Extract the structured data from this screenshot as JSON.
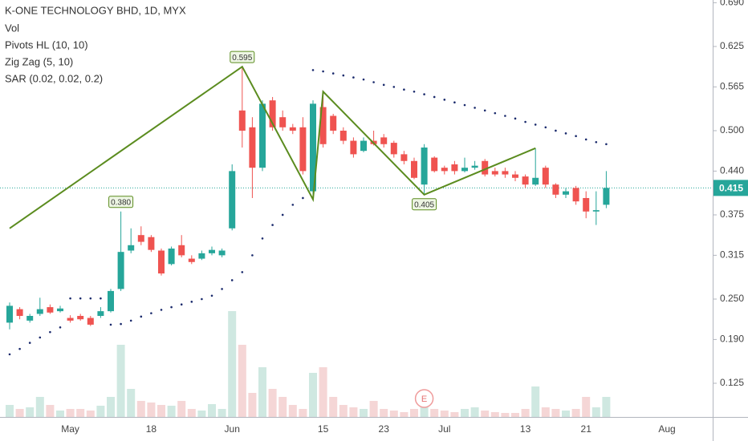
{
  "chart_data": {
    "type": "candlestick",
    "title": "K-ONE TECHNOLOGY BHD, 1D, MYX",
    "legend": [
      "Vol",
      "Pivots HL (10, 10)",
      "Zig Zag (5, 10)",
      "SAR (0.02, 0.02, 0.2)"
    ],
    "categories": [
      null,
      null,
      null,
      null,
      null,
      null,
      "May",
      null,
      null,
      null,
      null,
      null,
      null,
      null,
      "18",
      null,
      null,
      null,
      null,
      null,
      null,
      null,
      "Jun",
      null,
      null,
      null,
      null,
      null,
      null,
      null,
      null,
      "15",
      null,
      null,
      null,
      null,
      null,
      "23",
      null,
      null,
      null,
      null,
      null,
      "Jul",
      null,
      null,
      null,
      null,
      null,
      null,
      null,
      "13",
      null,
      null,
      null,
      null,
      null,
      "21",
      null,
      null,
      null,
      null,
      null,
      null,
      null,
      "Aug"
    ],
    "open": [
      0.215,
      0.235,
      0.218,
      0.228,
      0.238,
      0.232,
      0.222,
      0.225,
      0.222,
      0.225,
      0.232,
      0.265,
      0.322,
      0.345,
      0.342,
      0.322,
      0.302,
      0.33,
      0.31,
      0.31,
      0.318,
      0.315,
      0.355,
      0.53,
      0.505,
      0.445,
      0.545,
      0.52,
      0.505,
      0.505,
      0.41,
      0.535,
      0.522,
      0.5,
      0.485,
      0.47,
      0.485,
      0.49,
      0.482,
      0.465,
      0.455,
      0.42,
      0.46,
      0.445,
      0.45,
      0.44,
      0.445,
      0.455,
      0.44,
      0.44,
      0.435,
      0.432,
      0.42,
      0.445,
      0.42,
      0.405,
      0.415,
      0.4,
      0.38,
      0.39,
      null,
      null,
      null,
      null,
      null,
      null
    ],
    "high": [
      0.245,
      0.238,
      0.228,
      0.252,
      0.242,
      0.24,
      0.226,
      0.228,
      0.225,
      0.238,
      0.265,
      0.38,
      0.355,
      0.358,
      0.345,
      0.325,
      0.328,
      0.345,
      0.315,
      0.322,
      0.328,
      0.325,
      0.45,
      0.595,
      0.52,
      0.545,
      0.55,
      0.53,
      0.51,
      0.52,
      0.545,
      0.558,
      0.525,
      0.505,
      0.49,
      0.49,
      0.5,
      0.495,
      0.485,
      0.47,
      0.46,
      0.48,
      0.462,
      0.448,
      0.455,
      0.46,
      0.455,
      0.458,
      0.445,
      0.445,
      0.44,
      0.435,
      0.474,
      0.448,
      0.422,
      0.415,
      0.418,
      0.41,
      0.41,
      0.44,
      null,
      null,
      null,
      null,
      null,
      null
    ],
    "low": [
      0.205,
      0.22,
      0.215,
      0.225,
      0.228,
      0.23,
      0.215,
      0.218,
      0.21,
      0.222,
      0.23,
      0.262,
      0.318,
      0.33,
      0.32,
      0.285,
      0.3,
      0.312,
      0.302,
      0.308,
      0.315,
      0.312,
      0.352,
      0.475,
      0.4,
      0.44,
      0.5,
      0.5,
      0.495,
      0.435,
      0.398,
      0.475,
      0.495,
      0.48,
      0.46,
      0.468,
      0.478,
      0.475,
      0.46,
      0.45,
      0.428,
      0.405,
      0.438,
      0.435,
      0.435,
      0.438,
      0.442,
      0.432,
      0.432,
      0.43,
      0.425,
      0.415,
      0.418,
      0.415,
      0.4,
      0.4,
      0.39,
      0.37,
      0.36,
      0.385,
      null,
      null,
      null,
      null,
      null,
      null
    ],
    "close": [
      0.24,
      0.225,
      0.225,
      0.235,
      0.23,
      0.236,
      0.218,
      0.22,
      0.212,
      0.232,
      0.262,
      0.32,
      0.33,
      0.335,
      0.323,
      0.288,
      0.325,
      0.315,
      0.305,
      0.318,
      0.323,
      0.322,
      0.44,
      0.5,
      0.445,
      0.54,
      0.505,
      0.505,
      0.5,
      0.44,
      0.54,
      0.48,
      0.5,
      0.485,
      0.465,
      0.485,
      0.48,
      0.48,
      0.465,
      0.455,
      0.43,
      0.475,
      0.44,
      0.44,
      0.44,
      0.445,
      0.448,
      0.435,
      0.435,
      0.435,
      0.43,
      0.42,
      0.43,
      0.42,
      0.405,
      0.41,
      0.395,
      0.38,
      0.382,
      0.415,
      null,
      null,
      null,
      null,
      null,
      null
    ],
    "volume": [
      15,
      10,
      12,
      25,
      15,
      8,
      10,
      10,
      8,
      14,
      25,
      90,
      35,
      20,
      18,
      15,
      14,
      20,
      10,
      8,
      16,
      10,
      132,
      90,
      30,
      62,
      35,
      25,
      15,
      10,
      55,
      62,
      25,
      15,
      12,
      10,
      20,
      10,
      8,
      6,
      10,
      25,
      10,
      8,
      6,
      10,
      12,
      8,
      6,
      5,
      5,
      10,
      38,
      12,
      10,
      8,
      10,
      25,
      12,
      25,
      null,
      null,
      null,
      null,
      null,
      null
    ],
    "sar": [
      0.168,
      0.176,
      0.185,
      0.193,
      0.201,
      0.208,
      0.251,
      0.251,
      0.251,
      0.251,
      0.212,
      0.213,
      0.218,
      0.224,
      0.229,
      0.234,
      0.238,
      0.242,
      0.246,
      0.25,
      0.255,
      0.265,
      0.278,
      0.29,
      0.315,
      0.34,
      0.36,
      0.375,
      0.39,
      0.4,
      0.59,
      0.588,
      0.585,
      0.582,
      0.579,
      0.576,
      0.572,
      0.568,
      0.565,
      0.561,
      0.558,
      0.554,
      0.55,
      0.546,
      0.542,
      0.538,
      0.534,
      0.53,
      0.526,
      0.522,
      0.518,
      0.513,
      0.509,
      0.505,
      0.5,
      0.496,
      0.492,
      0.487,
      0.483,
      0.48,
      null,
      null,
      null,
      null,
      null,
      null
    ],
    "zigzag": {
      "bars": [
        0,
        23,
        30,
        31,
        41,
        52
      ],
      "values": [
        0.355,
        0.595,
        0.398,
        0.558,
        0.405,
        0.474
      ]
    },
    "pivots": {
      "bars": [
        11,
        23,
        41
      ],
      "values": [
        0.38,
        0.595,
        0.405
      ],
      "value_labels": [
        "0.380",
        "0.595",
        "0.405"
      ],
      "positions": [
        "high",
        "high",
        "low"
      ]
    },
    "last_price": {
      "value": 0.415,
      "label": "0.415"
    },
    "earnings": {
      "bar": 41,
      "label": "E"
    },
    "colors": {
      "up": "#26a69a",
      "down": "#ef5350",
      "volume_up": "#cfe8e1",
      "volume_down": "#f5d6d6",
      "zigzag": "#5b8c1f",
      "sar": "#1a2a6c",
      "price_line": "#26a69a"
    },
    "ylim": [
      0.075,
      0.694
    ],
    "yticks": [
      {
        "value": 0.69,
        "label": "0.690"
      },
      0.625,
      0.565,
      {
        "value": 0.5,
        "label": "0.500"
      },
      {
        "value": 0.44,
        "label": "0.440"
      },
      0.375,
      0.315,
      {
        "value": 0.25,
        "label": "0.250"
      },
      {
        "value": 0.19,
        "label": "0.190"
      },
      0.125
    ],
    "grid": false
  }
}
